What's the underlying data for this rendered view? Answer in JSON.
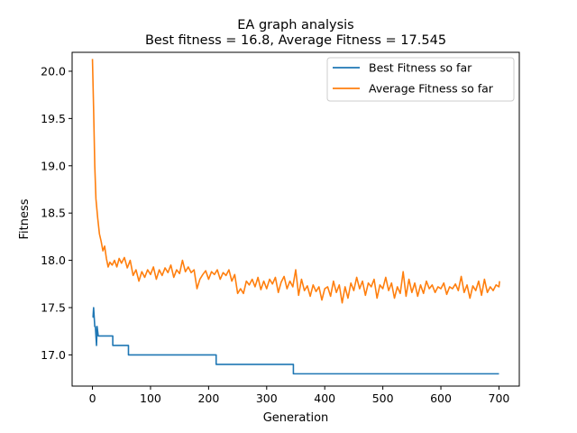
{
  "chart_data": {
    "type": "line",
    "title": "EA graph analysis",
    "subtitle": "Best fitness = 16.8, Average Fitness = 17.545",
    "xlabel": "Generation",
    "ylabel": "Fitness",
    "xlim": [
      -35,
      735
    ],
    "ylim": [
      16.67,
      20.2
    ],
    "xticks": [
      0,
      100,
      200,
      300,
      400,
      500,
      600,
      700
    ],
    "xtick_labels": [
      "0",
      "100",
      "200",
      "300",
      "400",
      "500",
      "600",
      "700"
    ],
    "yticks": [
      17.0,
      17.5,
      18.0,
      18.5,
      19.0,
      19.5,
      20.0
    ],
    "ytick_labels": [
      "17.0",
      "17.5",
      "18.0",
      "18.5",
      "19.0",
      "19.5",
      "20.0"
    ],
    "grid": false,
    "legend_position": "upper right",
    "series": [
      {
        "name": "Best Fitness so far",
        "color": "#1f77b4",
        "style": "step",
        "points": [
          [
            0,
            17.4
          ],
          [
            1,
            17.4
          ],
          [
            2,
            17.5
          ],
          [
            3,
            17.4
          ],
          [
            4,
            17.3
          ],
          [
            5,
            17.3
          ],
          [
            6,
            17.2
          ],
          [
            7,
            17.1
          ],
          [
            8,
            17.3
          ],
          [
            10,
            17.2
          ],
          [
            14,
            17.2
          ],
          [
            35,
            17.2
          ],
          [
            35,
            17.1
          ],
          [
            62,
            17.1
          ],
          [
            62,
            17.0
          ],
          [
            213,
            17.0
          ],
          [
            213,
            16.9
          ],
          [
            346,
            16.9
          ],
          [
            346,
            16.8
          ],
          [
            700,
            16.8
          ]
        ]
      },
      {
        "name": "Average Fitness so far",
        "color": "#ff7f0e",
        "style": "line",
        "points": [
          [
            0,
            20.13
          ],
          [
            2,
            19.6
          ],
          [
            4,
            19.0
          ],
          [
            6,
            18.65
          ],
          [
            9,
            18.45
          ],
          [
            12,
            18.28
          ],
          [
            15,
            18.2
          ],
          [
            18,
            18.1
          ],
          [
            21,
            18.15
          ],
          [
            24,
            18.02
          ],
          [
            27,
            17.93
          ],
          [
            30,
            17.98
          ],
          [
            34,
            17.95
          ],
          [
            38,
            18.0
          ],
          [
            42,
            17.93
          ],
          [
            46,
            18.02
          ],
          [
            50,
            17.97
          ],
          [
            55,
            18.03
          ],
          [
            60,
            17.92
          ],
          [
            65,
            18.0
          ],
          [
            70,
            17.84
          ],
          [
            75,
            17.9
          ],
          [
            80,
            17.78
          ],
          [
            85,
            17.88
          ],
          [
            90,
            17.82
          ],
          [
            95,
            17.9
          ],
          [
            100,
            17.85
          ],
          [
            105,
            17.93
          ],
          [
            110,
            17.8
          ],
          [
            115,
            17.9
          ],
          [
            120,
            17.84
          ],
          [
            125,
            17.92
          ],
          [
            130,
            17.87
          ],
          [
            135,
            17.95
          ],
          [
            140,
            17.82
          ],
          [
            145,
            17.9
          ],
          [
            150,
            17.86
          ],
          [
            155,
            18.0
          ],
          [
            160,
            17.88
          ],
          [
            165,
            17.93
          ],
          [
            170,
            17.87
          ],
          [
            175,
            17.9
          ],
          [
            180,
            17.7
          ],
          [
            185,
            17.8
          ],
          [
            190,
            17.85
          ],
          [
            195,
            17.89
          ],
          [
            200,
            17.8
          ],
          [
            205,
            17.88
          ],
          [
            210,
            17.85
          ],
          [
            215,
            17.9
          ],
          [
            220,
            17.8
          ],
          [
            225,
            17.87
          ],
          [
            230,
            17.84
          ],
          [
            235,
            17.9
          ],
          [
            240,
            17.78
          ],
          [
            245,
            17.85
          ],
          [
            250,
            17.65
          ],
          [
            255,
            17.7
          ],
          [
            260,
            17.65
          ],
          [
            265,
            17.78
          ],
          [
            270,
            17.74
          ],
          [
            275,
            17.8
          ],
          [
            280,
            17.72
          ],
          [
            285,
            17.82
          ],
          [
            290,
            17.69
          ],
          [
            295,
            17.78
          ],
          [
            300,
            17.7
          ],
          [
            305,
            17.8
          ],
          [
            310,
            17.75
          ],
          [
            315,
            17.82
          ],
          [
            320,
            17.66
          ],
          [
            325,
            17.77
          ],
          [
            330,
            17.83
          ],
          [
            335,
            17.7
          ],
          [
            340,
            17.78
          ],
          [
            345,
            17.72
          ],
          [
            350,
            17.9
          ],
          [
            355,
            17.63
          ],
          [
            360,
            17.8
          ],
          [
            365,
            17.68
          ],
          [
            370,
            17.73
          ],
          [
            375,
            17.62
          ],
          [
            380,
            17.74
          ],
          [
            385,
            17.67
          ],
          [
            390,
            17.72
          ],
          [
            395,
            17.58
          ],
          [
            400,
            17.7
          ],
          [
            405,
            17.72
          ],
          [
            410,
            17.62
          ],
          [
            415,
            17.78
          ],
          [
            420,
            17.66
          ],
          [
            425,
            17.74
          ],
          [
            430,
            17.55
          ],
          [
            435,
            17.72
          ],
          [
            440,
            17.6
          ],
          [
            445,
            17.76
          ],
          [
            450,
            17.68
          ],
          [
            455,
            17.82
          ],
          [
            460,
            17.7
          ],
          [
            465,
            17.78
          ],
          [
            470,
            17.63
          ],
          [
            475,
            17.76
          ],
          [
            480,
            17.72
          ],
          [
            485,
            17.8
          ],
          [
            490,
            17.6
          ],
          [
            495,
            17.74
          ],
          [
            500,
            17.7
          ],
          [
            505,
            17.82
          ],
          [
            510,
            17.68
          ],
          [
            515,
            17.76
          ],
          [
            520,
            17.6
          ],
          [
            525,
            17.72
          ],
          [
            530,
            17.65
          ],
          [
            535,
            17.88
          ],
          [
            540,
            17.62
          ],
          [
            545,
            17.8
          ],
          [
            550,
            17.66
          ],
          [
            555,
            17.76
          ],
          [
            560,
            17.62
          ],
          [
            565,
            17.74
          ],
          [
            570,
            17.65
          ],
          [
            575,
            17.78
          ],
          [
            580,
            17.7
          ],
          [
            585,
            17.74
          ],
          [
            590,
            17.66
          ],
          [
            595,
            17.72
          ],
          [
            600,
            17.7
          ],
          [
            605,
            17.76
          ],
          [
            610,
            17.64
          ],
          [
            615,
            17.72
          ],
          [
            620,
            17.7
          ],
          [
            625,
            17.75
          ],
          [
            630,
            17.68
          ],
          [
            635,
            17.83
          ],
          [
            640,
            17.66
          ],
          [
            645,
            17.74
          ],
          [
            650,
            17.6
          ],
          [
            655,
            17.73
          ],
          [
            660,
            17.68
          ],
          [
            665,
            17.78
          ],
          [
            670,
            17.63
          ],
          [
            675,
            17.8
          ],
          [
            680,
            17.66
          ],
          [
            685,
            17.72
          ],
          [
            690,
            17.68
          ],
          [
            695,
            17.74
          ],
          [
            700,
            17.72
          ],
          [
            701,
            17.78
          ]
        ]
      }
    ]
  }
}
